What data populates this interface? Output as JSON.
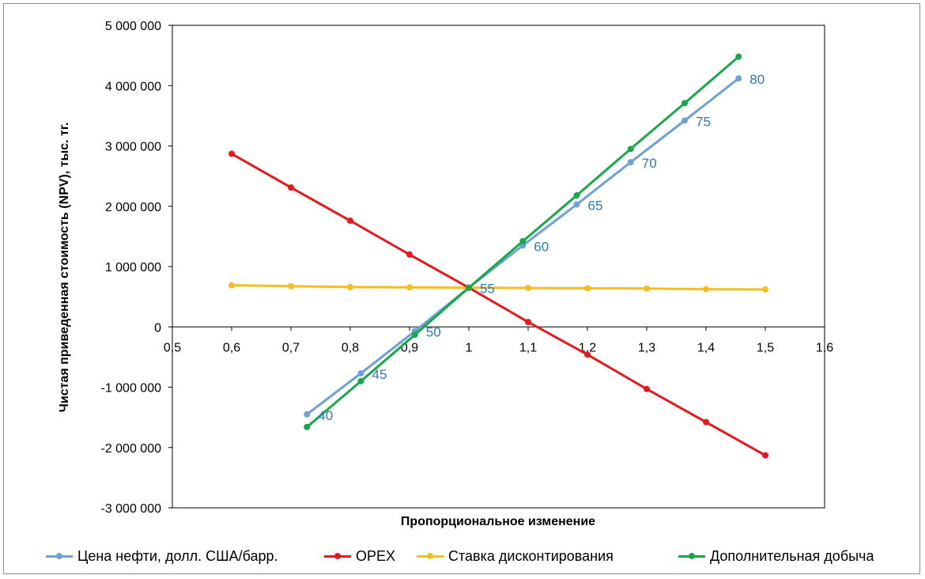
{
  "chart_data": {
    "type": "line",
    "title": "",
    "xlabel": "Пропорциональное изменение",
    "ylabel": "Чистая приведенная стоимость (NPV), тыс. тг.",
    "xlim": [
      0.5,
      1.6
    ],
    "ylim": [
      -3000000,
      5000000
    ],
    "x_ticks": [
      0.5,
      0.6,
      0.7,
      0.8,
      0.9,
      1.0,
      1.1,
      1.2,
      1.3,
      1.4,
      1.5,
      1.6
    ],
    "x_tick_labels": [
      "0,5",
      "0,6",
      "0,7",
      "0,8",
      "0,9",
      "1",
      "1,1",
      "1,2",
      "1,3",
      "1,4",
      "1,5",
      "1,6"
    ],
    "y_ticks": [
      -3000000,
      -2000000,
      -1000000,
      0,
      1000000,
      2000000,
      3000000,
      4000000,
      5000000
    ],
    "y_tick_labels": [
      "-3 000 000",
      "-2 000 000",
      "-1 000 000",
      "0",
      "1 000 000",
      "2 000 000",
      "3 000 000",
      "4 000 000",
      "5 000 000"
    ],
    "legend_position": "bottom",
    "series": [
      {
        "name": "Цена нефти, долл. США/барр.",
        "color": "#6fa1d6",
        "label_color": "#2e78bf",
        "x": [
          0.727,
          0.818,
          0.909,
          1.0,
          1.091,
          1.182,
          1.273,
          1.364,
          1.455
        ],
        "y": [
          -1450000,
          -770000,
          -70000,
          650000,
          1350000,
          2030000,
          2730000,
          3420000,
          4120000
        ],
        "point_labels": [
          "40",
          "45",
          "50",
          "55",
          "60",
          "65",
          "70",
          "75",
          "80"
        ]
      },
      {
        "name": "OPEX",
        "color": "#e8191e",
        "x": [
          0.6,
          0.7,
          0.8,
          0.9,
          1.0,
          1.1,
          1.2,
          1.3,
          1.4,
          1.5
        ],
        "y": [
          2870000,
          2310000,
          1760000,
          1200000,
          650000,
          80000,
          -460000,
          -1030000,
          -1580000,
          -2130000
        ]
      },
      {
        "name": "Ставка дисконтирования",
        "color": "#f5bd1f",
        "x": [
          0.6,
          0.7,
          0.8,
          0.9,
          1.0,
          1.1,
          1.2,
          1.3,
          1.4,
          1.5
        ],
        "y": [
          690000,
          675000,
          660000,
          655000,
          650000,
          645000,
          640000,
          635000,
          625000,
          620000
        ]
      },
      {
        "name": "Дополнительная добыча",
        "color": "#18a84a",
        "x": [
          0.727,
          0.818,
          0.909,
          1.0,
          1.091,
          1.182,
          1.273,
          1.364,
          1.455
        ],
        "y": [
          -1660000,
          -900000,
          -130000,
          650000,
          1420000,
          2180000,
          2950000,
          3710000,
          4480000
        ]
      }
    ]
  }
}
